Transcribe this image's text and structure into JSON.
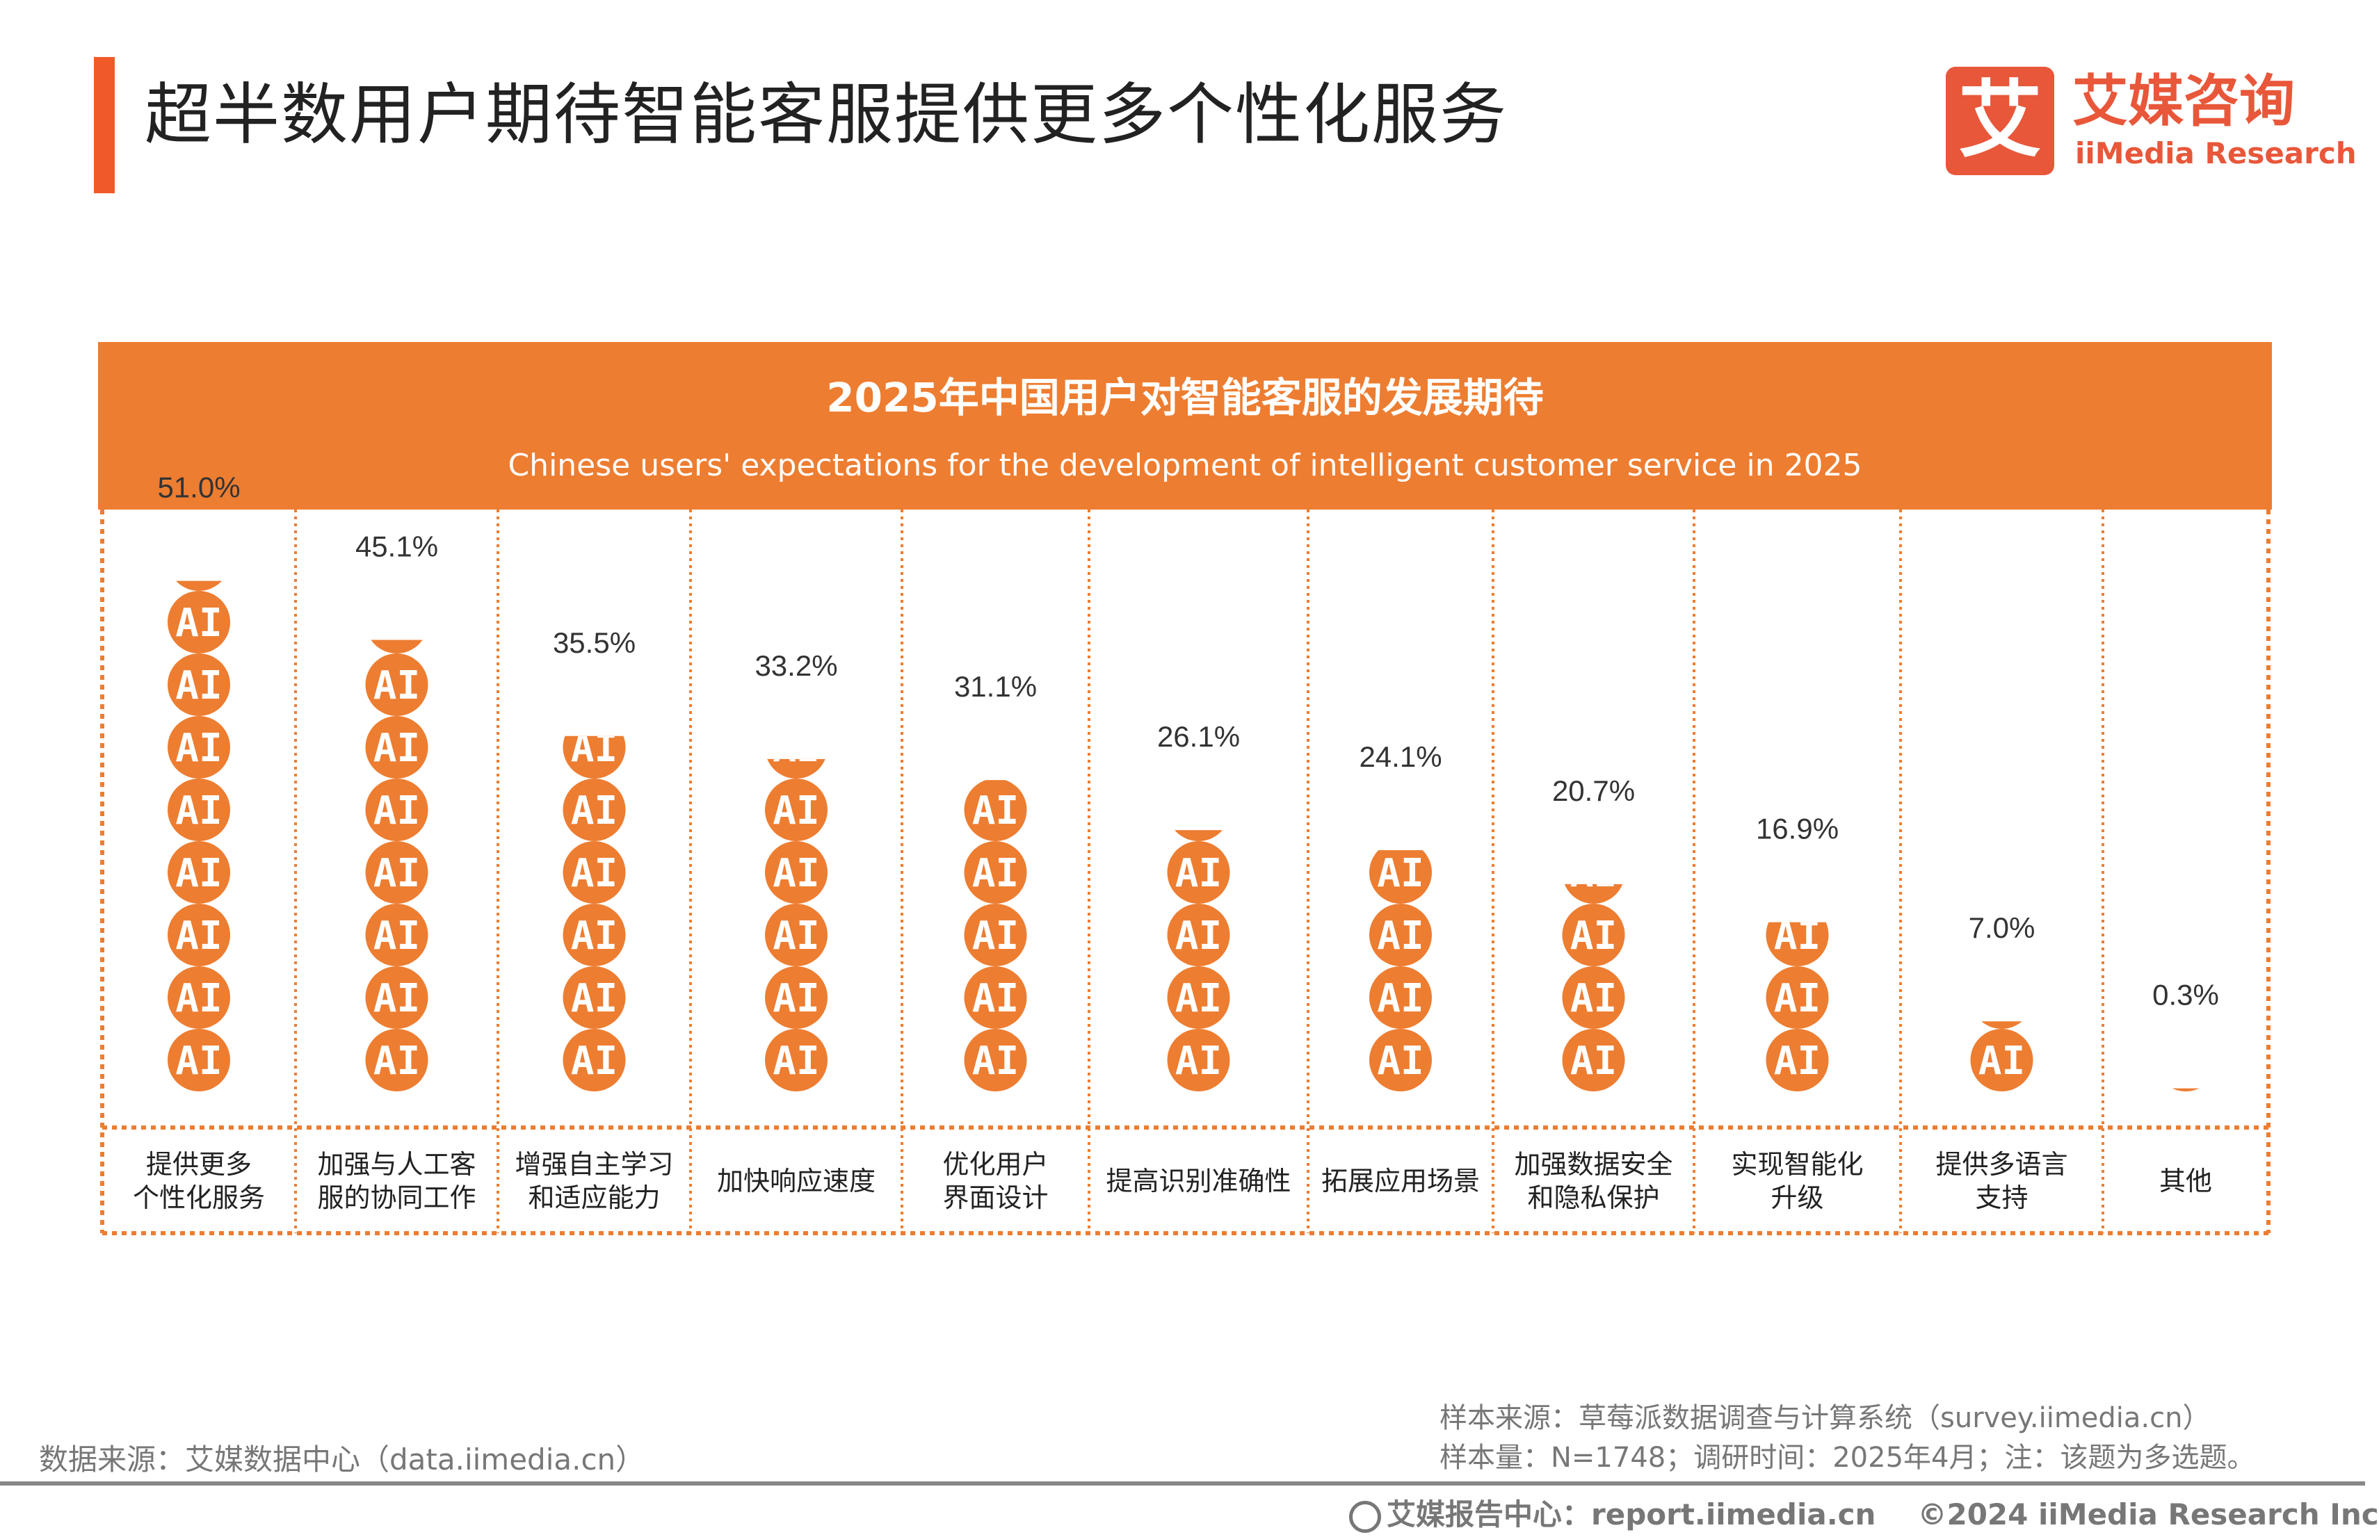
{
  "page_title": "超半数用户期待智能客服提供更多个性化服务",
  "logo": {
    "mark": "艾",
    "cn": "艾媒咨询",
    "en": "iiMedia Research"
  },
  "colors": {
    "accent": "#F05A28",
    "chart_orange": "#ED7D31",
    "text": "#333333"
  },
  "chart_data": {
    "type": "bar",
    "style": "pictogram",
    "icon": "ai-circle-icon",
    "unit_per_icon": 6.25,
    "title": "2025年中国用户对智能客服的发展期待",
    "subtitle": "Chinese users' expectations for the development of intelligent customer service in 2025",
    "categories": [
      "提供更多\n个性化服务",
      "加强与人工客\n服的协同工作",
      "增强自主学习\n和适应能力",
      "加快响应速度",
      "优化用户\n界面设计",
      "提高识别准确性",
      "拓展应用场景",
      "加强数据安全\n和隐私保护",
      "实现智能化\n升级",
      "提供多语言\n支持",
      "其他"
    ],
    "values": [
      51.0,
      45.1,
      35.5,
      33.2,
      31.1,
      26.1,
      24.1,
      20.7,
      16.9,
      7.0,
      0.3
    ],
    "value_labels": [
      "51.0%",
      "45.1%",
      "35.5%",
      "33.2%",
      "31.1%",
      "26.1%",
      "24.1%",
      "20.7%",
      "16.9%",
      "7.0%",
      "0.3%"
    ],
    "grid": false,
    "legend": "none"
  },
  "source": {
    "left": "数据来源：艾媒数据中心（data.iimedia.cn）",
    "sample_source": "样本来源：草莓派数据调查与计算系统（survey.iimedia.cn）",
    "sample_info": "样本量：N=1748；调研时间：2025年4月；注：该题为多选题。"
  },
  "footer": {
    "report": "艾媒报告中心：report.iimedia.cn",
    "copyright": "©2024  iiMedia Research  Inc"
  }
}
